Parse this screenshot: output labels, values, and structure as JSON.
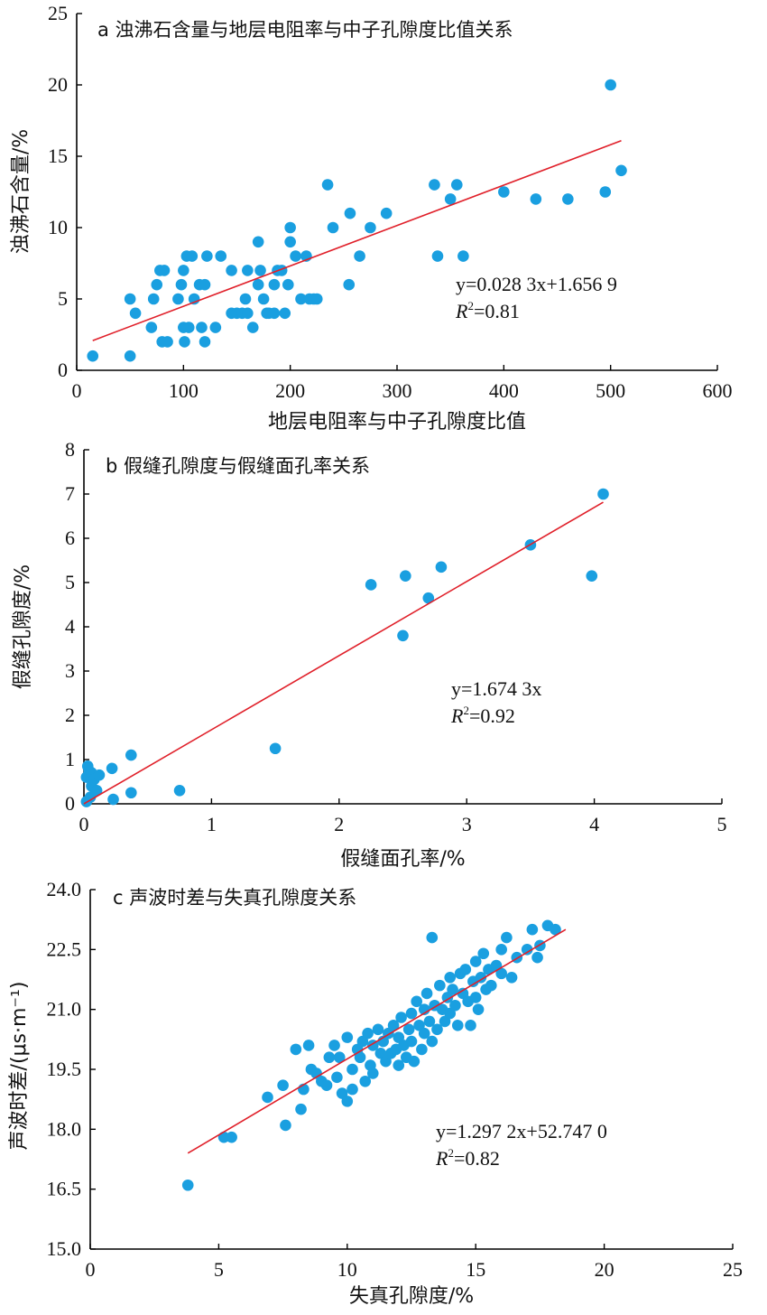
{
  "chart_data": [
    {
      "type": "scatter",
      "title": "a 浊沸石含量与地层电阻率与中子孔隙度比值关系",
      "xlabel": "地层电阻率与中子孔隙度比值",
      "ylabel": "浊沸石含量/%",
      "xlim": [
        0,
        600
      ],
      "ylim": [
        0,
        25
      ],
      "xticks": [
        "0",
        "100",
        "200",
        "300",
        "400",
        "500",
        "600"
      ],
      "yticks": [
        "0",
        "5",
        "10",
        "15",
        "20",
        "25"
      ],
      "equation": "y=0.028 3x+1.656 9",
      "r2": "R²=0.81",
      "r2_label": "R",
      "r2_value": "=0.81",
      "fit": {
        "slope": 0.0283,
        "intercept": 1.6569,
        "x_range": [
          15,
          510
        ]
      },
      "points": [
        [
          15,
          1
        ],
        [
          50,
          1
        ],
        [
          50,
          5
        ],
        [
          55,
          4
        ],
        [
          70,
          3
        ],
        [
          72,
          5
        ],
        [
          75,
          6
        ],
        [
          78,
          7
        ],
        [
          80,
          2
        ],
        [
          82,
          7
        ],
        [
          85,
          2
        ],
        [
          95,
          5
        ],
        [
          98,
          6
        ],
        [
          100,
          3
        ],
        [
          100,
          7
        ],
        [
          101,
          2
        ],
        [
          103,
          8
        ],
        [
          105,
          3
        ],
        [
          108,
          8
        ],
        [
          110,
          5
        ],
        [
          115,
          6
        ],
        [
          117,
          3
        ],
        [
          120,
          2
        ],
        [
          120,
          6
        ],
        [
          122,
          8
        ],
        [
          130,
          3
        ],
        [
          135,
          8
        ],
        [
          145,
          7
        ],
        [
          145,
          4
        ],
        [
          150,
          4
        ],
        [
          155,
          4
        ],
        [
          158,
          5
        ],
        [
          160,
          7
        ],
        [
          160,
          4
        ],
        [
          165,
          3
        ],
        [
          170,
          6
        ],
        [
          170,
          9
        ],
        [
          172,
          7
        ],
        [
          175,
          5
        ],
        [
          178,
          4
        ],
        [
          180,
          4
        ],
        [
          185,
          6
        ],
        [
          185,
          4
        ],
        [
          188,
          7
        ],
        [
          192,
          7
        ],
        [
          195,
          4
        ],
        [
          198,
          6
        ],
        [
          200,
          9
        ],
        [
          200,
          10
        ],
        [
          205,
          8
        ],
        [
          210,
          5
        ],
        [
          215,
          8
        ],
        [
          218,
          5
        ],
        [
          222,
          5
        ],
        [
          225,
          5
        ],
        [
          235,
          13
        ],
        [
          240,
          10
        ],
        [
          255,
          6
        ],
        [
          256,
          11
        ],
        [
          265,
          8
        ],
        [
          275,
          10
        ],
        [
          290,
          11
        ],
        [
          335,
          13
        ],
        [
          338,
          8
        ],
        [
          350,
          12
        ],
        [
          356,
          13
        ],
        [
          362,
          8
        ],
        [
          400,
          12.5
        ],
        [
          430,
          12
        ],
        [
          460,
          12
        ],
        [
          495,
          12.5
        ],
        [
          500,
          20
        ],
        [
          510,
          14
        ]
      ]
    },
    {
      "type": "scatter",
      "title": "b 假缝孔隙度与假缝面孔率关系",
      "xlabel": "假缝面孔率/%",
      "ylabel": "假缝孔隙度/%",
      "xlim": [
        0,
        5
      ],
      "ylim": [
        0,
        8
      ],
      "xticks": [
        "0",
        "1",
        "2",
        "3",
        "4",
        "5"
      ],
      "yticks": [
        "0",
        "1",
        "2",
        "3",
        "4",
        "5",
        "6",
        "7",
        "8"
      ],
      "equation": "y=1.674 3x",
      "r2": "R²=0.92",
      "r2_label": "R",
      "r2_value": "=0.92",
      "fit": {
        "slope": 1.6743,
        "intercept": 0,
        "x_range": [
          0,
          4.07
        ]
      },
      "points": [
        [
          0.02,
          0.05
        ],
        [
          0.02,
          0.6
        ],
        [
          0.03,
          0.85
        ],
        [
          0.04,
          0.75
        ],
        [
          0.05,
          0.15
        ],
        [
          0.06,
          0.4
        ],
        [
          0.06,
          0.7
        ],
        [
          0.08,
          0.55
        ],
        [
          0.1,
          0.3
        ],
        [
          0.12,
          0.65
        ],
        [
          0.22,
          0.8
        ],
        [
          0.23,
          0.1
        ],
        [
          0.37,
          1.1
        ],
        [
          0.37,
          0.25
        ],
        [
          0.75,
          0.3
        ],
        [
          1.5,
          1.25
        ],
        [
          2.25,
          4.95
        ],
        [
          2.5,
          3.8
        ],
        [
          2.52,
          5.15
        ],
        [
          2.7,
          4.65
        ],
        [
          2.8,
          5.35
        ],
        [
          3.5,
          5.85
        ],
        [
          3.98,
          5.15
        ],
        [
          4.07,
          7
        ]
      ]
    },
    {
      "type": "scatter",
      "title": "c 声波时差与失真孔隙度关系",
      "xlabel": "失真孔隙度/%",
      "ylabel": "声波时差/(μs·m⁻¹)",
      "xlim": [
        0,
        25
      ],
      "ylim": [
        15.0,
        24.0
      ],
      "xticks": [
        "0",
        "5",
        "10",
        "15",
        "20",
        "25"
      ],
      "yticks": [
        "15.0",
        "16.5",
        "18.0",
        "19.5",
        "21.0",
        "22.5",
        "24.0"
      ],
      "equation": "y=1.297 2x+52.747 0",
      "r2": "R²=0.82",
      "r2_label": "R",
      "r2_value": "=0.82",
      "fit": {
        "x_range": [
          3.8,
          18.5
        ],
        "y_range": [
          17.4,
          23.0
        ]
      },
      "points": [
        [
          3.8,
          16.6
        ],
        [
          5.2,
          17.8
        ],
        [
          5.5,
          17.8
        ],
        [
          6.9,
          18.8
        ],
        [
          7.5,
          19.1
        ],
        [
          7.6,
          18.1
        ],
        [
          8,
          20.0
        ],
        [
          8.2,
          18.5
        ],
        [
          8.3,
          19.0
        ],
        [
          8.5,
          20.1
        ],
        [
          8.6,
          19.5
        ],
        [
          8.8,
          19.4
        ],
        [
          9,
          19.2
        ],
        [
          9.2,
          19.1
        ],
        [
          9.3,
          19.8
        ],
        [
          9.5,
          20.1
        ],
        [
          9.6,
          19.3
        ],
        [
          9.7,
          19.8
        ],
        [
          9.8,
          18.9
        ],
        [
          10,
          20.3
        ],
        [
          10,
          18.7
        ],
        [
          10.2,
          19.5
        ],
        [
          10.2,
          19.0
        ],
        [
          10.4,
          20.0
        ],
        [
          10.5,
          19.8
        ],
        [
          10.6,
          20.2
        ],
        [
          10.7,
          19.2
        ],
        [
          10.8,
          20.4
        ],
        [
          10.9,
          19.6
        ],
        [
          11,
          20.1
        ],
        [
          11,
          19.4
        ],
        [
          11.2,
          20.5
        ],
        [
          11.3,
          19.9
        ],
        [
          11.4,
          20.2
        ],
        [
          11.5,
          19.7
        ],
        [
          11.6,
          20.4
        ],
        [
          11.7,
          19.9
        ],
        [
          11.8,
          20.6
        ],
        [
          11.9,
          20.0
        ],
        [
          12,
          20.3
        ],
        [
          12,
          19.6
        ],
        [
          12.1,
          20.8
        ],
        [
          12.2,
          20.1
        ],
        [
          12.3,
          19.8
        ],
        [
          12.4,
          20.5
        ],
        [
          12.5,
          20.9
        ],
        [
          12.5,
          20.2
        ],
        [
          12.6,
          19.7
        ],
        [
          12.7,
          21.2
        ],
        [
          12.8,
          20.6
        ],
        [
          12.9,
          20.0
        ],
        [
          13,
          21.0
        ],
        [
          13,
          20.4
        ],
        [
          13.1,
          21.4
        ],
        [
          13.2,
          20.7
        ],
        [
          13.3,
          22.8
        ],
        [
          13.3,
          20.2
        ],
        [
          13.4,
          21.1
        ],
        [
          13.5,
          20.5
        ],
        [
          13.6,
          21.6
        ],
        [
          13.7,
          21.0
        ],
        [
          13.8,
          20.7
        ],
        [
          13.9,
          21.3
        ],
        [
          14,
          21.8
        ],
        [
          14,
          20.9
        ],
        [
          14.1,
          21.5
        ],
        [
          14.2,
          21.1
        ],
        [
          14.3,
          20.6
        ],
        [
          14.4,
          21.9
        ],
        [
          14.5,
          21.4
        ],
        [
          14.6,
          22.0
        ],
        [
          14.7,
          21.2
        ],
        [
          14.8,
          20.6
        ],
        [
          14.9,
          21.7
        ],
        [
          15,
          22.2
        ],
        [
          15,
          21.3
        ],
        [
          15.1,
          21.0
        ],
        [
          15.2,
          21.8
        ],
        [
          15.3,
          22.4
        ],
        [
          15.4,
          21.5
        ],
        [
          15.5,
          22.0
        ],
        [
          15.6,
          21.6
        ],
        [
          15.8,
          22.1
        ],
        [
          16,
          22.5
        ],
        [
          16,
          21.9
        ],
        [
          16.2,
          22.8
        ],
        [
          16.4,
          21.8
        ],
        [
          16.6,
          22.3
        ],
        [
          17,
          22.5
        ],
        [
          17.2,
          23.0
        ],
        [
          17.4,
          22.3
        ],
        [
          17.8,
          23.1
        ],
        [
          18.1,
          23.0
        ],
        [
          17.5,
          22.6
        ]
      ]
    }
  ]
}
